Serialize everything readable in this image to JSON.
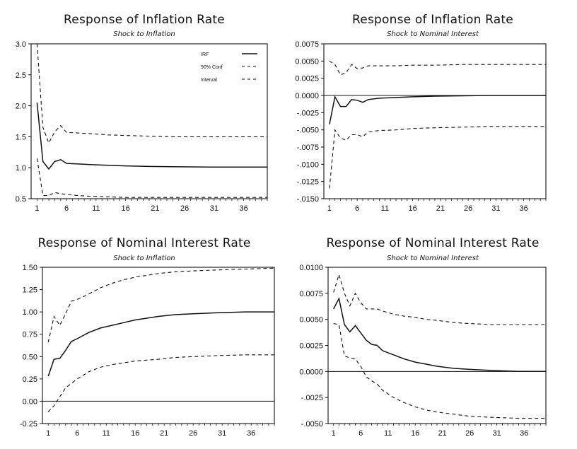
{
  "charts": [
    {
      "title": "Response of Inflation Rate",
      "subtitle": "Shock to Inflation",
      "chart_data": {
        "type": "line",
        "title": "Response of Inflation Rate",
        "subtitle": "Shock to Inflation",
        "x_range": [
          0,
          40
        ],
        "ylim": [
          0.5,
          3.0
        ],
        "yticks": [
          0.5,
          1.0,
          1.5,
          2.0,
          2.5,
          3.0
        ],
        "ytick_labels": [
          "0.5",
          "1.0",
          "1.5",
          "2.0",
          "2.5",
          "3.0"
        ],
        "xticks": [
          1,
          6,
          11,
          16,
          21,
          26,
          31,
          36
        ],
        "xtick_labels": [
          "1",
          "6",
          "11",
          "16",
          "21",
          "26",
          "31",
          "36"
        ],
        "zero_line": false,
        "legend": {
          "placement": "top-right",
          "entries": [
            "IRF",
            "90% Conf",
            "Interval"
          ]
        },
        "series": [
          {
            "name": "IRF",
            "style": "solid",
            "x": [
              1,
              2,
              3,
              4,
              5,
              6,
              8,
              10,
              13,
              16,
              20,
              25,
              30,
              35,
              40
            ],
            "values": [
              2.05,
              1.1,
              0.98,
              1.1,
              1.13,
              1.07,
              1.06,
              1.05,
              1.04,
              1.03,
              1.02,
              1.015,
              1.01,
              1.01,
              1.01
            ]
          },
          {
            "style": "dashed",
            "x": [
              1,
              2,
              3,
              4,
              5,
              6,
              8,
              10,
              13,
              16,
              20,
              25,
              30,
              35,
              40
            ],
            "values": [
              3.0,
              1.65,
              1.4,
              1.58,
              1.68,
              1.57,
              1.56,
              1.55,
              1.53,
              1.52,
              1.51,
              1.5,
              1.5,
              1.5,
              1.5
            ]
          },
          {
            "style": "dashed",
            "x": [
              1,
              2,
              3,
              4,
              5,
              6,
              8,
              10,
              13,
              16,
              20,
              25,
              30,
              35,
              40
            ],
            "values": [
              1.15,
              0.55,
              0.55,
              0.6,
              0.58,
              0.57,
              0.55,
              0.54,
              0.53,
              0.52,
              0.52,
              0.52,
              0.52,
              0.52,
              0.52
            ]
          }
        ]
      }
    },
    {
      "title": "Response of Inflation Rate",
      "subtitle": "Shock to Nominal Interest",
      "chart_data": {
        "type": "line",
        "title": "Response of Inflation Rate",
        "subtitle": "Shock to Nominal Interest",
        "x_range": [
          0,
          40
        ],
        "ylim": [
          -0.015,
          0.0075
        ],
        "yticks": [
          -0.015,
          -0.0125,
          -0.01,
          -0.0075,
          -0.005,
          -0.0025,
          0.0,
          0.0025,
          0.005,
          0.0075
        ],
        "ytick_labels": [
          "-.0150",
          "-.0125",
          "-.0100",
          "-.0075",
          "-.0050",
          "-.0025",
          "0.0000",
          "0.0025",
          "0.0050",
          "0.0075"
        ],
        "xticks": [
          1,
          6,
          11,
          16,
          21,
          26,
          31,
          36
        ],
        "xtick_labels": [
          "1",
          "6",
          "11",
          "16",
          "21",
          "26",
          "31",
          "36"
        ],
        "zero_line": true,
        "series": [
          {
            "style": "solid",
            "x": [
              1,
              2,
              3,
              4,
              5,
              6,
              7,
              8,
              10,
              13,
              16,
              20,
              25,
              30,
              35,
              40
            ],
            "values": [
              -0.0042,
              -0.0002,
              -0.0016,
              -0.0016,
              -0.0006,
              -0.0007,
              -0.001,
              -0.0006,
              -0.0004,
              -0.0003,
              -0.0002,
              -0.0001,
              -5e-05,
              0.0,
              0.0,
              0.0
            ]
          },
          {
            "style": "dashed",
            "x": [
              1,
              2,
              3,
              4,
              5,
              6,
              7,
              8,
              10,
              13,
              16,
              20,
              25,
              30,
              35,
              40
            ],
            "values": [
              0.005,
              0.0045,
              0.003,
              0.0033,
              0.0045,
              0.0039,
              0.004,
              0.0043,
              0.0043,
              0.0043,
              0.0044,
              0.0044,
              0.0045,
              0.0045,
              0.0045,
              0.0045
            ]
          },
          {
            "style": "dashed",
            "x": [
              1,
              2,
              3,
              4,
              5,
              6,
              7,
              8,
              10,
              13,
              16,
              20,
              25,
              30,
              35,
              40
            ],
            "values": [
              -0.0135,
              -0.005,
              -0.0062,
              -0.0065,
              -0.0057,
              -0.0057,
              -0.006,
              -0.0053,
              -0.0051,
              -0.005,
              -0.0048,
              -0.0047,
              -0.0046,
              -0.0045,
              -0.0045,
              -0.0045
            ]
          }
        ]
      }
    },
    {
      "title": "Response of Nominal Interest Rate",
      "subtitle": "Shock to Inflation",
      "chart_data": {
        "type": "line",
        "title": "Response of Nominal Interest Rate",
        "subtitle": "Shock to Inflation",
        "x_range": [
          0,
          40
        ],
        "ylim": [
          -0.25,
          1.5
        ],
        "yticks": [
          -0.25,
          0.0,
          0.25,
          0.5,
          0.75,
          1.0,
          1.25,
          1.5
        ],
        "ytick_labels": [
          "-0.25",
          "0.00",
          "0.25",
          "0.50",
          "0.75",
          "1.00",
          "1.25",
          "1.50"
        ],
        "xticks": [
          1,
          6,
          11,
          16,
          21,
          26,
          31,
          36
        ],
        "xtick_labels": [
          "1",
          "6",
          "11",
          "16",
          "21",
          "26",
          "31",
          "36"
        ],
        "zero_line": true,
        "series": [
          {
            "style": "solid",
            "x": [
              1,
              2,
              3,
              4,
              5,
              6,
              8,
              10,
              12,
              14,
              16,
              18,
              20,
              23,
              26,
              30,
              35,
              40
            ],
            "values": [
              0.28,
              0.47,
              0.48,
              0.57,
              0.67,
              0.7,
              0.77,
              0.82,
              0.85,
              0.88,
              0.91,
              0.93,
              0.95,
              0.97,
              0.98,
              0.99,
              1.0,
              1.0
            ]
          },
          {
            "style": "dashed",
            "x": [
              1,
              2,
              3,
              4,
              5,
              6,
              8,
              10,
              12,
              14,
              16,
              18,
              20,
              23,
              26,
              30,
              35,
              40
            ],
            "values": [
              0.66,
              0.95,
              0.85,
              0.98,
              1.12,
              1.14,
              1.2,
              1.27,
              1.32,
              1.36,
              1.39,
              1.41,
              1.43,
              1.45,
              1.46,
              1.47,
              1.48,
              1.49
            ]
          },
          {
            "style": "dashed",
            "x": [
              1,
              2,
              3,
              4,
              5,
              6,
              8,
              10,
              12,
              14,
              16,
              18,
              20,
              23,
              26,
              30,
              35,
              40
            ],
            "values": [
              -0.12,
              -0.05,
              0.05,
              0.15,
              0.2,
              0.25,
              0.33,
              0.38,
              0.41,
              0.43,
              0.45,
              0.46,
              0.47,
              0.49,
              0.5,
              0.51,
              0.52,
              0.52
            ]
          }
        ]
      }
    },
    {
      "title": "Response of Nominal Interest Rate",
      "subtitle": "Shock to Nominal Interest",
      "chart_data": {
        "type": "line",
        "title": "Response of Nominal Interest Rate",
        "subtitle": "Shock to Nominal Interest",
        "x_range": [
          0,
          40
        ],
        "ylim": [
          -0.005,
          0.01
        ],
        "yticks": [
          -0.005,
          -0.0025,
          0.0,
          0.0025,
          0.005,
          0.0075,
          0.01
        ],
        "ytick_labels": [
          "-.0050",
          "-.0025",
          "0.0000",
          "0.0025",
          "0.0050",
          "0.0075",
          "0.0100"
        ],
        "xticks": [
          1,
          6,
          11,
          16,
          21,
          26,
          31,
          36
        ],
        "xtick_labels": [
          "1",
          "6",
          "11",
          "16",
          "21",
          "26",
          "31",
          "36"
        ],
        "zero_line": true,
        "series": [
          {
            "style": "solid",
            "x": [
              1,
              2,
              3,
              4,
              5,
              6,
              7,
              8,
              9,
              10,
              12,
              14,
              16,
              18,
              20,
              23,
              26,
              30,
              35,
              40
            ],
            "values": [
              0.006,
              0.007,
              0.0045,
              0.0038,
              0.0044,
              0.0037,
              0.003,
              0.0026,
              0.0025,
              0.002,
              0.0016,
              0.0012,
              0.0009,
              0.0007,
              0.0005,
              0.0003,
              0.0002,
              0.0001,
              0.0,
              0.0
            ]
          },
          {
            "style": "dashed",
            "x": [
              1,
              2,
              3,
              4,
              5,
              6,
              7,
              8,
              9,
              10,
              12,
              14,
              16,
              18,
              20,
              23,
              26,
              30,
              35,
              40
            ],
            "values": [
              0.0076,
              0.0093,
              0.0075,
              0.0063,
              0.0075,
              0.0066,
              0.006,
              0.006,
              0.006,
              0.0058,
              0.0055,
              0.0053,
              0.0052,
              0.005,
              0.0049,
              0.0047,
              0.0046,
              0.0045,
              0.0045,
              0.0045
            ]
          },
          {
            "style": "dashed",
            "x": [
              1,
              2,
              3,
              4,
              5,
              6,
              7,
              8,
              9,
              10,
              12,
              14,
              16,
              18,
              20,
              23,
              26,
              30,
              35,
              40
            ],
            "values": [
              0.0046,
              0.0045,
              0.0015,
              0.0013,
              0.0012,
              0.0005,
              -0.0005,
              -0.0009,
              -0.0012,
              -0.0018,
              -0.0025,
              -0.003,
              -0.0034,
              -0.0037,
              -0.0039,
              -0.0041,
              -0.0043,
              -0.0044,
              -0.0045,
              -0.0045
            ]
          }
        ]
      }
    }
  ]
}
